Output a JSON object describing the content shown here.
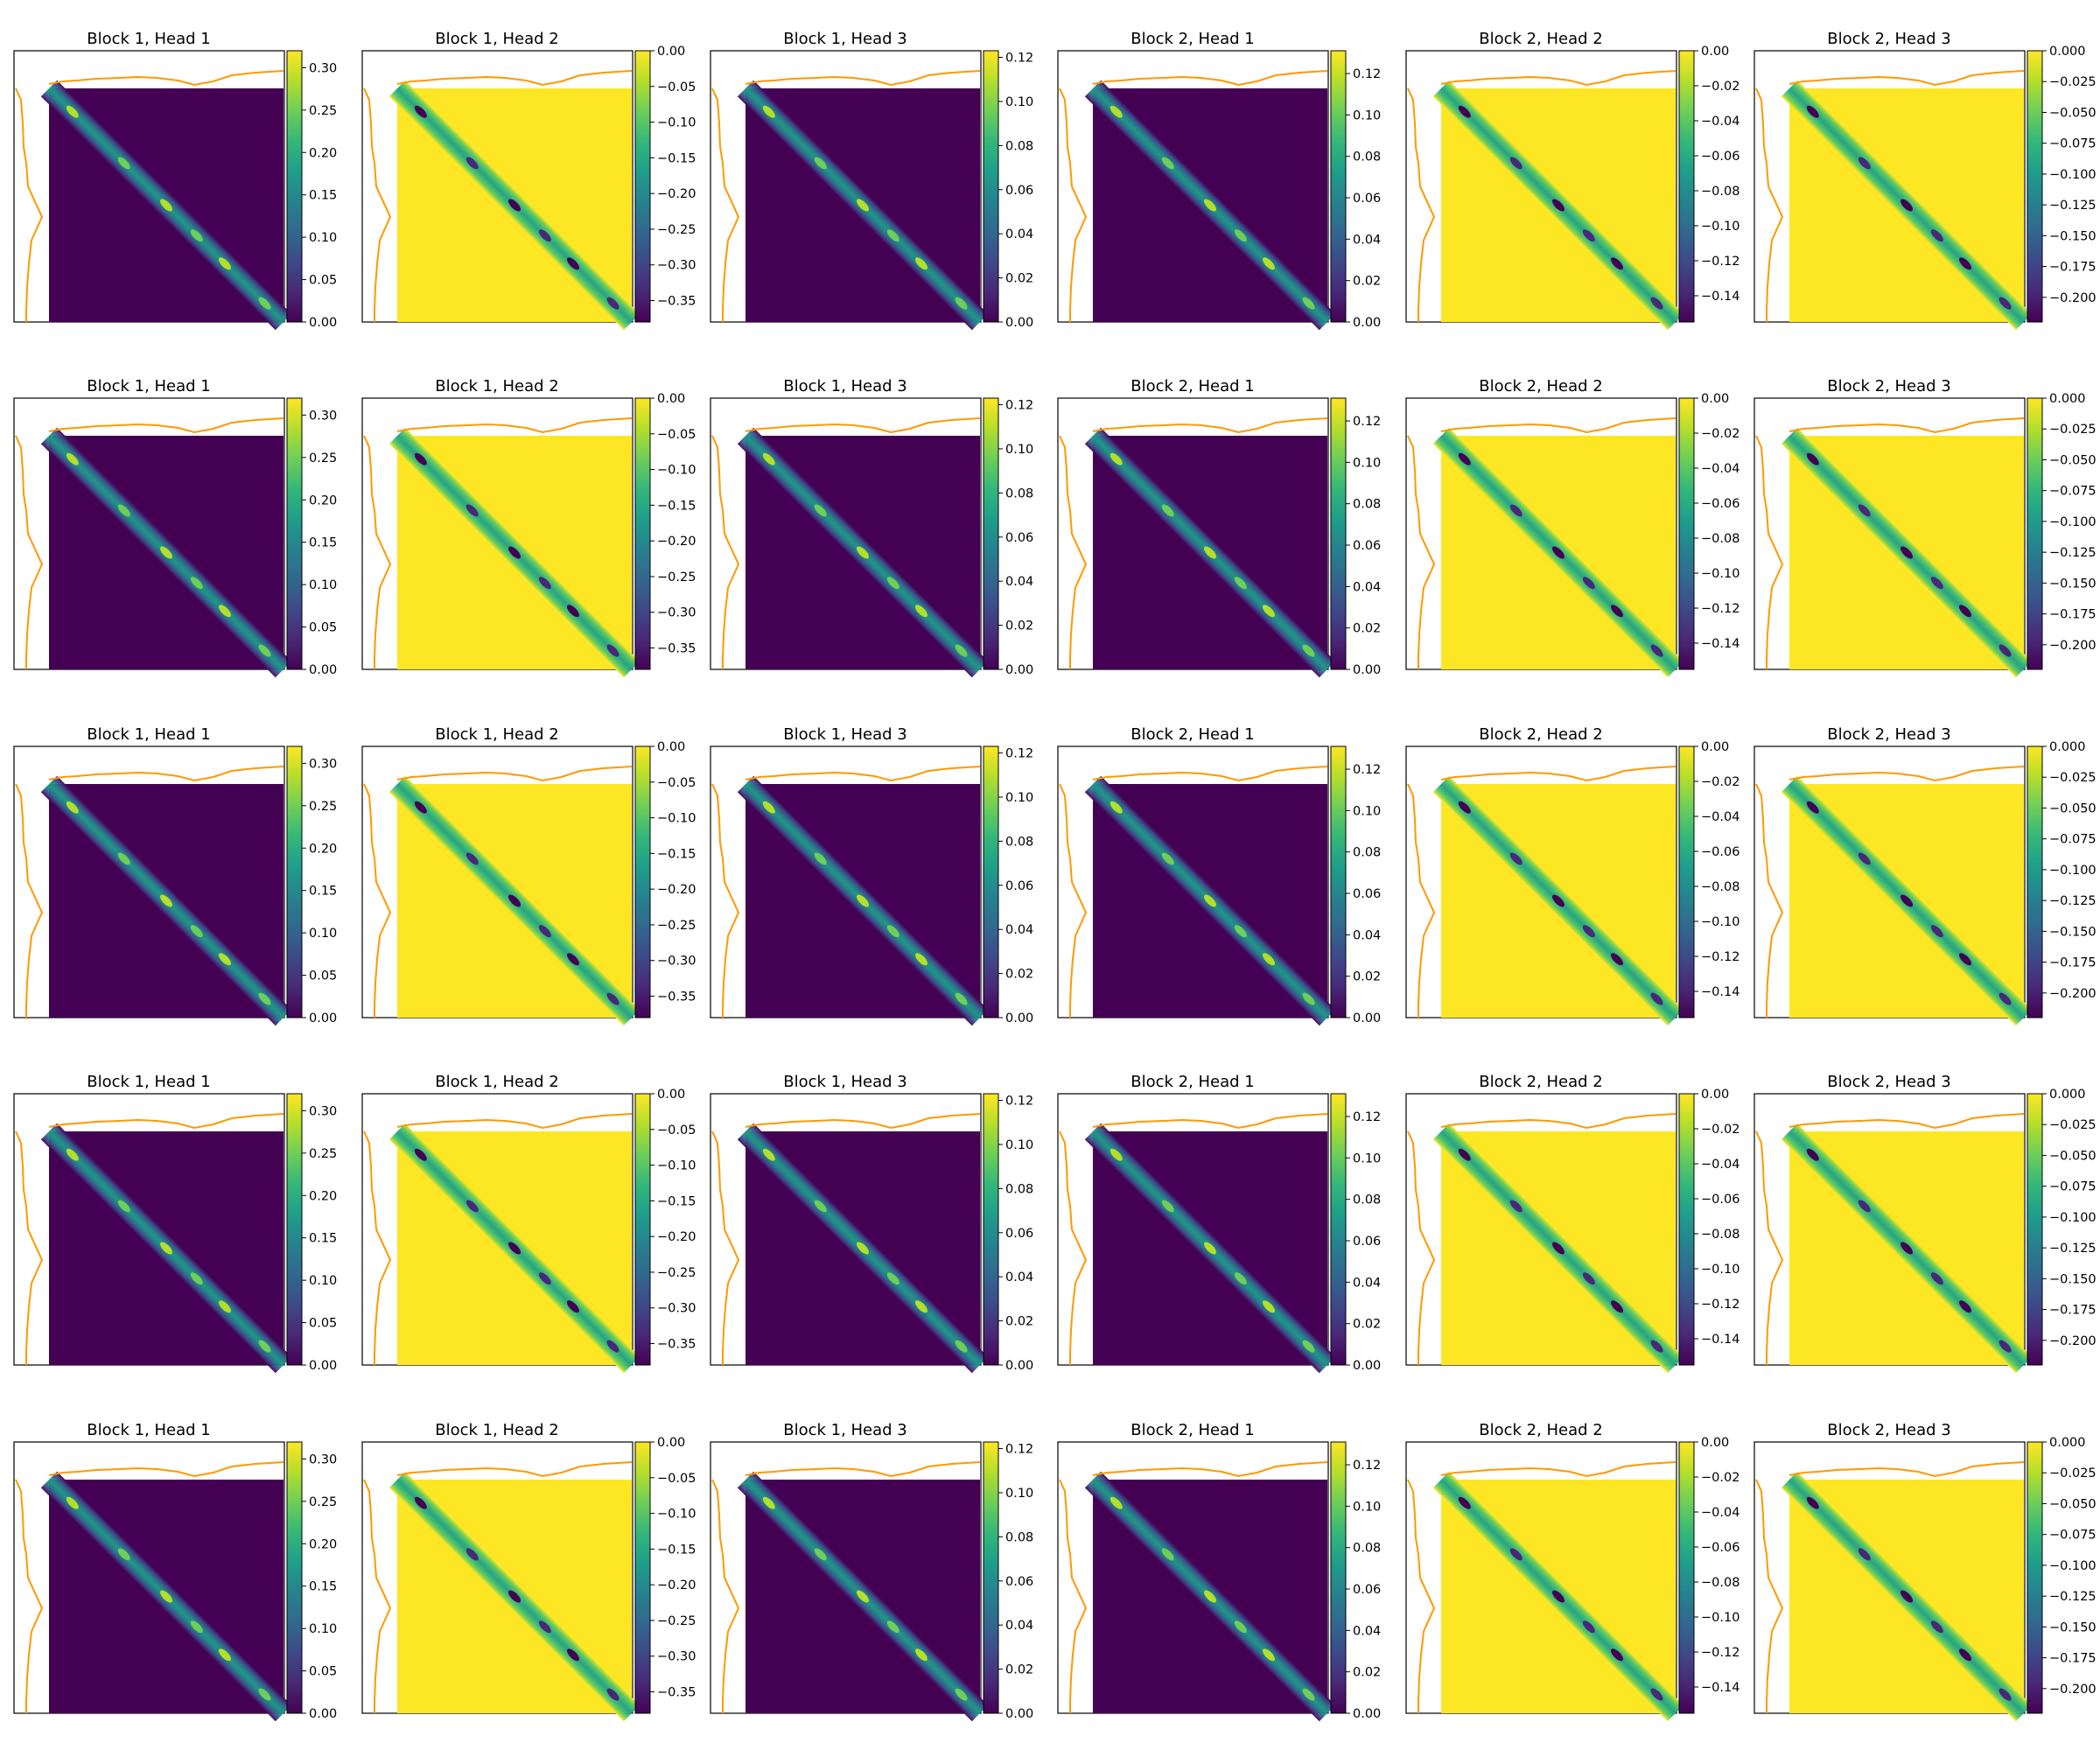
{
  "figure": {
    "rows": 5,
    "panel_order": [
      "b1h1",
      "b1h2",
      "b1h3",
      "b2h1",
      "b2h2",
      "b2h3"
    ]
  },
  "panels": {
    "b1h1": {
      "title": "Block 1, Head 1",
      "vmin": 0.0,
      "vmax": 0.32,
      "ticks": [
        "0.00",
        "0.05",
        "0.10",
        "0.15",
        "0.20",
        "0.25",
        "0.30"
      ],
      "background": "low"
    },
    "b1h2": {
      "title": "Block 1, Head 2",
      "vmin": -0.38,
      "vmax": 0.0,
      "ticks": [
        "0.00",
        "-0.05",
        "-0.10",
        "-0.15",
        "-0.20",
        "-0.25",
        "-0.30",
        "-0.35"
      ],
      "background": "high"
    },
    "b1h3": {
      "title": "Block 1, Head 3",
      "vmin": 0.0,
      "vmax": 0.123,
      "ticks": [
        "0.00",
        "0.02",
        "0.04",
        "0.06",
        "0.08",
        "0.10",
        "0.12"
      ],
      "background": "low"
    },
    "b2h1": {
      "title": "Block 2, Head 1",
      "vmin": 0.0,
      "vmax": 0.131,
      "ticks": [
        "0.00",
        "0.02",
        "0.04",
        "0.06",
        "0.08",
        "0.10",
        "0.12"
      ],
      "background": "low"
    },
    "b2h2": {
      "title": "Block 2, Head 2",
      "vmin": -0.155,
      "vmax": 0.0,
      "ticks": [
        "0.00",
        "-0.02",
        "-0.04",
        "-0.06",
        "-0.08",
        "-0.10",
        "-0.12",
        "-0.14"
      ],
      "background": "high"
    },
    "b2h3": {
      "title": "Block 2, Head 3",
      "vmin": -0.22,
      "vmax": 0.0,
      "ticks": [
        "0.000",
        "-0.025",
        "-0.050",
        "-0.075",
        "-0.100",
        "-0.125",
        "-0.150",
        "-0.175",
        "-0.200"
      ],
      "background": "high"
    }
  },
  "chart_data": {
    "type": "heatmap",
    "colormap": "viridis",
    "colormap_stops": [
      "#440154",
      "#482878",
      "#3e4989",
      "#31688e",
      "#26828e",
      "#1f9e89",
      "#35b779",
      "#6ece58",
      "#b5de2b",
      "#fde725"
    ],
    "line_color": "#ff9900",
    "series": [
      {
        "name": "Block 1, Head 1",
        "min": 0.0,
        "max": 0.32,
        "pattern": "diagonal band of high values on a low background"
      },
      {
        "name": "Block 1, Head 2",
        "min": -0.38,
        "max": 0.0,
        "pattern": "diagonal band of low values on a high background"
      },
      {
        "name": "Block 1, Head 3",
        "min": 0.0,
        "max": 0.123,
        "pattern": "diagonal band of high values on a low background"
      },
      {
        "name": "Block 2, Head 1",
        "min": 0.0,
        "max": 0.131,
        "pattern": "diagonal band of high values on a low background"
      },
      {
        "name": "Block 2, Head 2",
        "min": -0.155,
        "max": 0.0,
        "pattern": "diagonal band of low values on a high background"
      },
      {
        "name": "Block 2, Head 3",
        "min": -0.22,
        "max": 0.0,
        "pattern": "diagonal band of low values on a high background"
      }
    ]
  }
}
